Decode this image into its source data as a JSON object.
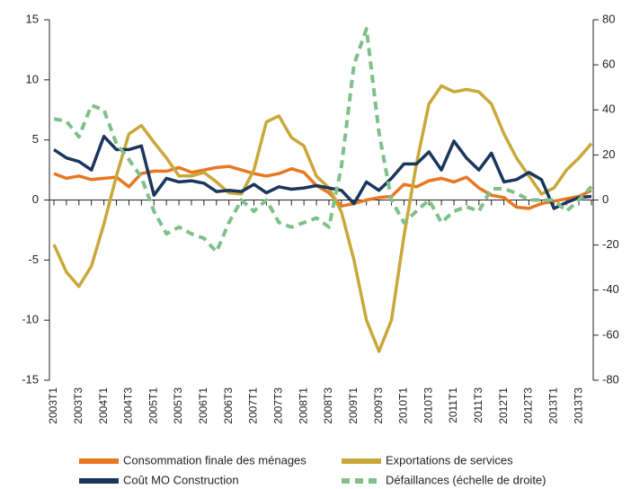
{
  "chart_data": {
    "type": "line",
    "categories": [
      "2003T1",
      null,
      "2003T3",
      null,
      "2004T1",
      null,
      "2004T3",
      null,
      "2005T1",
      null,
      "2005T3",
      null,
      "2006T1",
      null,
      "2006T3",
      null,
      "2007T1",
      null,
      "2007T3",
      null,
      "2008T1",
      null,
      "2008T3",
      null,
      "2009T1",
      null,
      "2009T3",
      null,
      "2010T1",
      null,
      "2010T3",
      null,
      "2011T1",
      null,
      "2011T3",
      null,
      "2012T1",
      null,
      "2012T3",
      null,
      "2013T1",
      null,
      "2013T3",
      null
    ],
    "series": [
      {
        "name": "Consommation finale des ménages",
        "color": "#e87722",
        "values": [
          2.2,
          1.8,
          2.0,
          1.7,
          1.8,
          1.9,
          1.1,
          2.2,
          2.4,
          2.4,
          2.7,
          2.3,
          2.5,
          2.7,
          2.8,
          2.5,
          2.2,
          2.0,
          2.2,
          2.6,
          2.3,
          1.2,
          0.6,
          -0.5,
          -0.3,
          0.0,
          0.2,
          0.3,
          1.3,
          1.1,
          1.6,
          1.8,
          1.5,
          1.9,
          1.0,
          0.4,
          0.2,
          -0.6,
          -0.7,
          -0.3,
          -0.1,
          0.1,
          0.3,
          0.8
        ]
      },
      {
        "name": "Exportations de services",
        "color": "#c9a83a",
        "values": [
          -3.7,
          -6.0,
          -7.2,
          -5.5,
          -2.0,
          2.0,
          5.5,
          6.2,
          4.8,
          3.5,
          2.0,
          2.0,
          2.3,
          1.5,
          0.6,
          0.5,
          2.5,
          6.5,
          7.0,
          5.2,
          4.5,
          2.0,
          1.0,
          -1.0,
          -5.0,
          -10.0,
          -12.6,
          -10.0,
          -3.0,
          3.0,
          8.0,
          9.5,
          9.0,
          9.2,
          9.0,
          8.0,
          5.5,
          3.5,
          2.0,
          0.5,
          1.0,
          2.5,
          3.5,
          4.7
        ]
      },
      {
        "name": "Coût MO Construction",
        "color": "#1b365d",
        "values": [
          4.2,
          3.5,
          3.2,
          2.5,
          5.3,
          4.2,
          4.2,
          4.5,
          0.4,
          1.8,
          1.5,
          1.6,
          1.4,
          0.7,
          0.8,
          0.7,
          1.3,
          0.6,
          1.1,
          0.9,
          1.0,
          1.2,
          1.0,
          0.8,
          -0.3,
          1.5,
          0.8,
          1.8,
          3.0,
          3.0,
          4.0,
          2.5,
          4.9,
          3.5,
          2.5,
          3.9,
          1.5,
          1.7,
          2.3,
          1.7,
          -0.7,
          -0.2,
          0.2,
          0.3
        ]
      },
      {
        "name": "Défaillances (échelle de droite)",
        "color": "#7fc08a",
        "axis": "y2",
        "dashed": true,
        "values": [
          36,
          35,
          28,
          42,
          40,
          25,
          18,
          10,
          -5,
          -15,
          -12,
          -15,
          -17,
          -23,
          -10,
          0,
          -5,
          0,
          -10,
          -12,
          -10,
          -8,
          -12,
          15,
          60,
          76,
          30,
          0,
          -10,
          -5,
          0,
          -10,
          -5,
          -3,
          -5,
          5,
          5,
          3,
          0,
          0,
          0,
          -5,
          0,
          6
        ]
      }
    ],
    "ylim": [
      -15,
      15
    ],
    "yticks": [
      15,
      10,
      5,
      0,
      -5,
      -10,
      -15
    ],
    "y2lim": [
      -80,
      80
    ],
    "y2ticks": [
      80,
      60,
      40,
      20,
      0,
      -20,
      -40,
      -60,
      -80
    ]
  }
}
